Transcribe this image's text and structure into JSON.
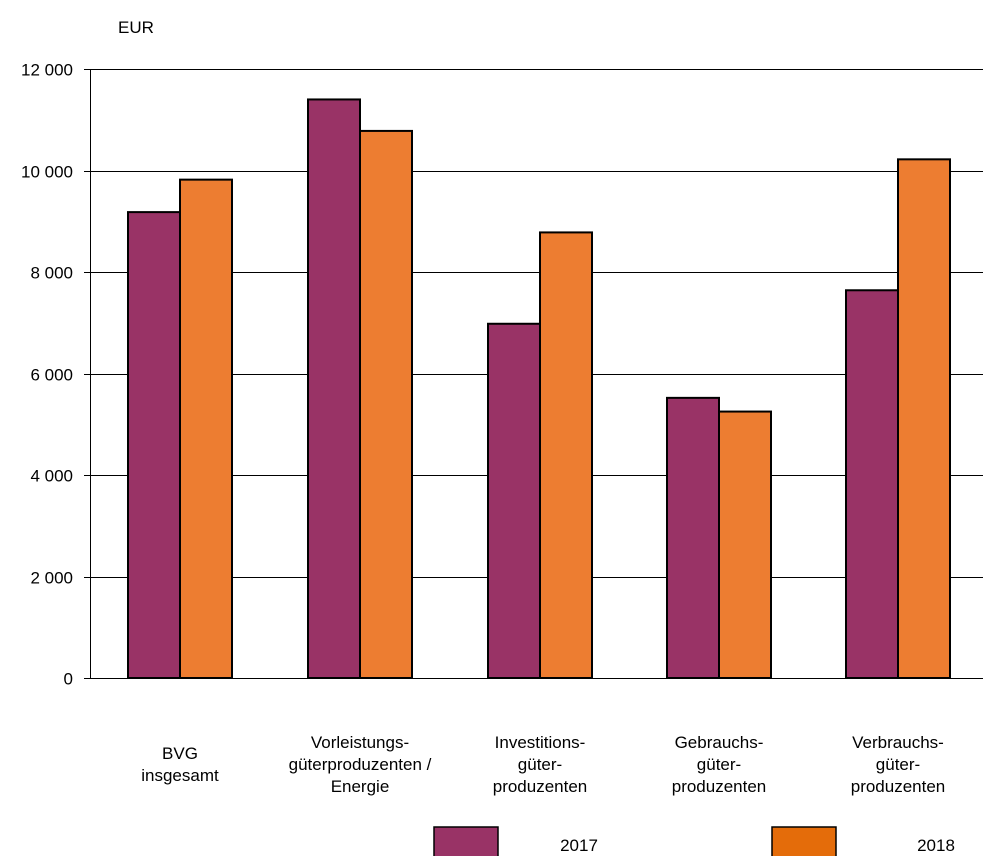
{
  "colors": {
    "series_2017": "#993366",
    "series_2018": "#ED7D31",
    "legend_2018_swatch": "#E46C0A",
    "grid": "#000000",
    "bar_stroke": "#000000"
  },
  "chart_data": {
    "type": "bar",
    "unit_label": "EUR",
    "categories": [
      [
        "BVG",
        "insgesamt"
      ],
      [
        "Vorleistungs-",
        "güterproduzenten /",
        "Energie"
      ],
      [
        "Investitions-",
        "güter-",
        "produzenten"
      ],
      [
        "Gebrauchs-",
        "güter-",
        "produzenten"
      ],
      [
        "Verbrauchs-",
        "güter-",
        "produzenten"
      ]
    ],
    "series": [
      {
        "name": "2017",
        "values": [
          9180,
          11400,
          6980,
          5520,
          7640
        ]
      },
      {
        "name": "2018",
        "values": [
          9820,
          10780,
          8780,
          5250,
          10220
        ]
      }
    ],
    "ylim": [
      0,
      12000
    ],
    "yticks": [
      0,
      2000,
      4000,
      6000,
      8000,
      10000,
      12000
    ],
    "ytick_labels": [
      "0",
      "2 000",
      "4 000",
      "6 000",
      "8 000",
      "10 000",
      "12 000"
    ],
    "grid": true,
    "legend_position": "bottom"
  }
}
